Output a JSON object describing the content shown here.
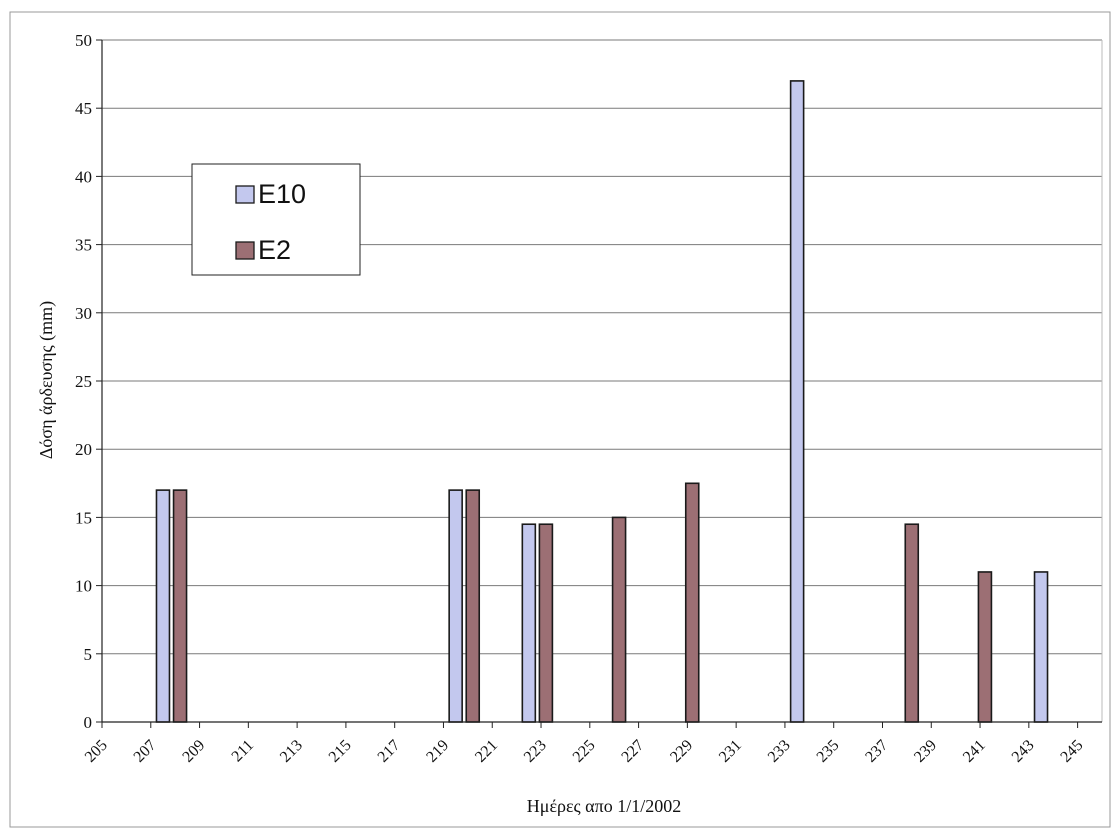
{
  "chart_data": {
    "type": "bar",
    "xlabel": "Ημέρες απο 1/1/2002",
    "ylabel": "Δόση άρδευσης (mm)",
    "ylim": [
      0,
      50
    ],
    "yticks": [
      0,
      5,
      10,
      15,
      20,
      25,
      30,
      35,
      40,
      45,
      50
    ],
    "xlim": [
      205,
      246
    ],
    "xticks": [
      205,
      207,
      209,
      211,
      213,
      215,
      217,
      219,
      221,
      223,
      225,
      227,
      229,
      231,
      233,
      235,
      237,
      239,
      241,
      243,
      245
    ],
    "grid": "horizontal",
    "legend_position": "top-left",
    "series": [
      {
        "name": "E10",
        "color": "#c3c8ee",
        "points": [
          {
            "x": 207.5,
            "y": 17
          },
          {
            "x": 219.5,
            "y": 17
          },
          {
            "x": 222.5,
            "y": 14.5
          },
          {
            "x": 233.5,
            "y": 47
          },
          {
            "x": 243.5,
            "y": 11
          }
        ]
      },
      {
        "name": "E2",
        "color": "#9c6f74",
        "points": [
          {
            "x": 208.2,
            "y": 17
          },
          {
            "x": 220.2,
            "y": 17
          },
          {
            "x": 223.2,
            "y": 14.5
          },
          {
            "x": 226.2,
            "y": 15
          },
          {
            "x": 229.2,
            "y": 17.5
          },
          {
            "x": 238.2,
            "y": 14.5
          },
          {
            "x": 241.2,
            "y": 11
          }
        ]
      }
    ]
  }
}
